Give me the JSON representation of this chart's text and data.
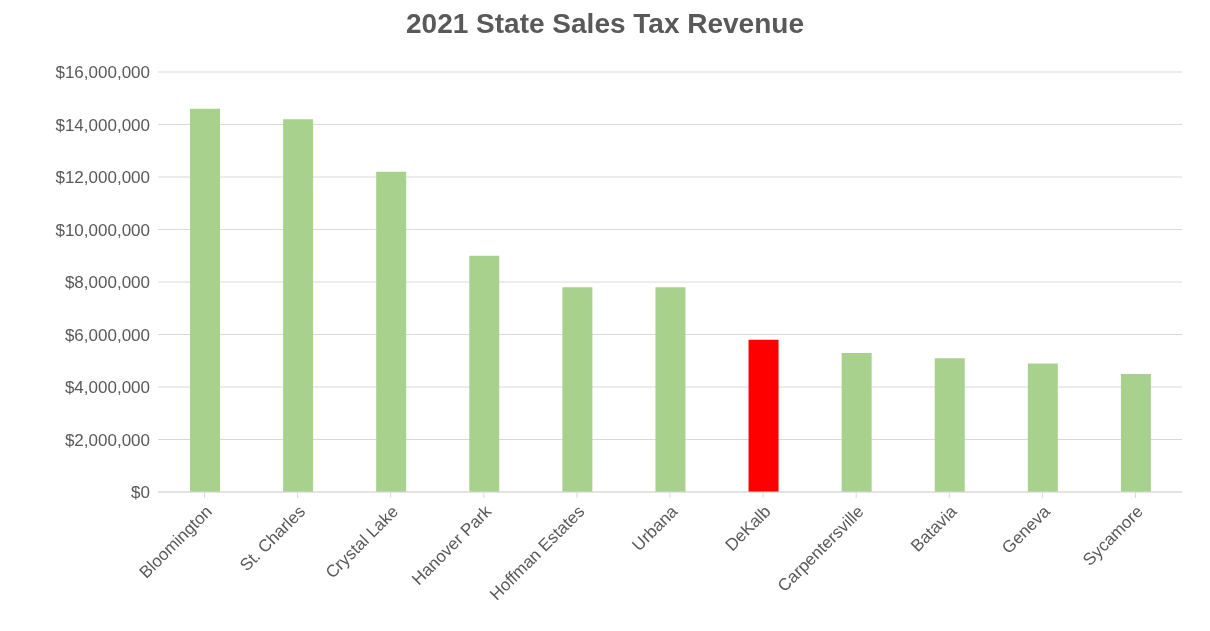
{
  "chart_data": {
    "type": "bar",
    "title": "2021 State Sales Tax Revenue",
    "categories": [
      "Bloomington",
      "St. Charles",
      "Crystal Lake",
      "Hanover Park",
      "Hoffman Estates",
      "Urbana",
      "DeKalb",
      "Carpentersville",
      "Batavia",
      "Geneva",
      "Sycamore"
    ],
    "values": [
      14600000,
      14200000,
      12200000,
      9000000,
      7800000,
      7800000,
      5800000,
      5300000,
      5100000,
      4900000,
      4500000
    ],
    "colors": [
      "#a9d18e",
      "#a9d18e",
      "#a9d18e",
      "#a9d18e",
      "#a9d18e",
      "#a9d18e",
      "#ff0000",
      "#a9d18e",
      "#a9d18e",
      "#a9d18e",
      "#a9d18e"
    ],
    "ylim": [
      0,
      16000000
    ],
    "yticks": [
      {
        "value": 0,
        "label": "$0"
      },
      {
        "value": 2000000,
        "label": "$2,000,000"
      },
      {
        "value": 4000000,
        "label": "$4,000,000"
      },
      {
        "value": 6000000,
        "label": "$6,000,000"
      },
      {
        "value": 8000000,
        "label": "$8,000,000"
      },
      {
        "value": 10000000,
        "label": "$10,000,000"
      },
      {
        "value": 12000000,
        "label": "$12,000,000"
      },
      {
        "value": 14000000,
        "label": "$14,000,000"
      },
      {
        "value": 16000000,
        "label": "$16,000,000"
      }
    ],
    "grid": "y"
  }
}
